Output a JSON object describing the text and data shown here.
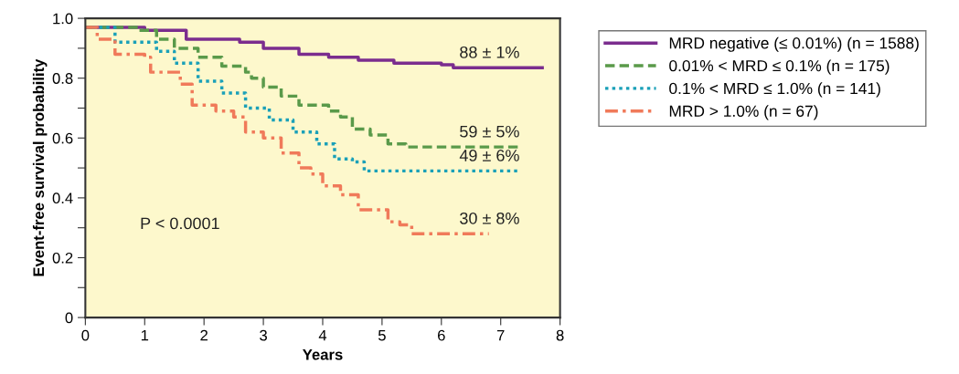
{
  "chart_data": {
    "type": "step",
    "xlabel": "Years",
    "ylabel": "Event-free survival probability",
    "xlim": [
      0,
      8
    ],
    "xticks": [
      0,
      1,
      2,
      3,
      4,
      5,
      6,
      7,
      8
    ],
    "ylim": [
      0,
      1.0
    ],
    "yticks": [
      0,
      {
        "value": 0.1,
        "label": null
      },
      {
        "value": 0.2,
        "label": "0.2"
      },
      {
        "value": 0.3,
        "label": null
      },
      {
        "value": 0.4,
        "label": "0.4"
      },
      {
        "value": 0.5,
        "label": null
      },
      {
        "value": 0.6,
        "label": "0.6"
      },
      {
        "value": 0.7,
        "label": null
      },
      {
        "value": 0.8,
        "label": "0.8"
      },
      {
        "value": 0.9,
        "label": null
      },
      {
        "value": 1.0,
        "label": "1.0"
      }
    ],
    "grid": false,
    "legend": "right",
    "marker": "none",
    "series": [
      {
        "name": "MRD negative (≤ 0.01%) (n = 1588)",
        "color": "#7b2d8e",
        "line_style": "solid",
        "x": [
          0,
          1,
          1.7,
          2.6,
          3,
          3.6,
          4.1,
          4.6,
          5.2,
          6,
          6.2,
          7.7
        ],
        "values": [
          0.97,
          0.96,
          0.93,
          0.92,
          0.9,
          0.88,
          0.87,
          0.86,
          0.85,
          0.845,
          0.835,
          0.835
        ]
      },
      {
        "name": "0.01% < MRD ≤ 0.1% (n = 175)",
        "color": "#5a9a4a",
        "line_style": "dashed",
        "x": [
          0,
          0.9,
          1.2,
          1.5,
          1.9,
          2.3,
          2.7,
          2.8,
          3.0,
          3.3,
          3.6,
          4.1,
          4.3,
          4.5,
          4.8,
          5.1,
          5.4,
          7.3
        ],
        "values": [
          0.97,
          0.96,
          0.93,
          0.9,
          0.87,
          0.84,
          0.82,
          0.8,
          0.77,
          0.74,
          0.71,
          0.69,
          0.67,
          0.63,
          0.61,
          0.58,
          0.57,
          0.57
        ]
      },
      {
        "name": "0.1% < MRD ≤ 1.0% (n = 141)",
        "color": "#1aa0b8",
        "line_style": "dotted",
        "x": [
          0,
          0.5,
          1.2,
          1.5,
          1.9,
          2.3,
          2.7,
          3.1,
          3.5,
          3.9,
          4.2,
          4.5,
          4.7,
          7.3
        ],
        "values": [
          0.97,
          0.92,
          0.89,
          0.85,
          0.79,
          0.75,
          0.7,
          0.66,
          0.62,
          0.58,
          0.53,
          0.52,
          0.49,
          0.49
        ]
      },
      {
        "name": "MRD > 1.0% (n = 67)",
        "color": "#f07a5a",
        "line_style": "dashdot",
        "x": [
          0,
          0.2,
          0.5,
          1.0,
          1.1,
          1.6,
          1.8,
          2.2,
          2.5,
          2.7,
          3.0,
          3.3,
          3.6,
          3.8,
          4.0,
          4.3,
          4.6,
          5.1,
          5.3,
          5.5,
          6.8
        ],
        "values": [
          0.97,
          0.93,
          0.88,
          0.87,
          0.82,
          0.78,
          0.71,
          0.69,
          0.67,
          0.62,
          0.6,
          0.55,
          0.5,
          0.48,
          0.44,
          0.41,
          0.36,
          0.32,
          0.31,
          0.28,
          0.28
        ]
      }
    ],
    "annotations": [
      "88 ± 1%",
      "59 ± 5%",
      "49 ± 6%",
      "30 ± 8%",
      "P < 0.0001"
    ]
  }
}
